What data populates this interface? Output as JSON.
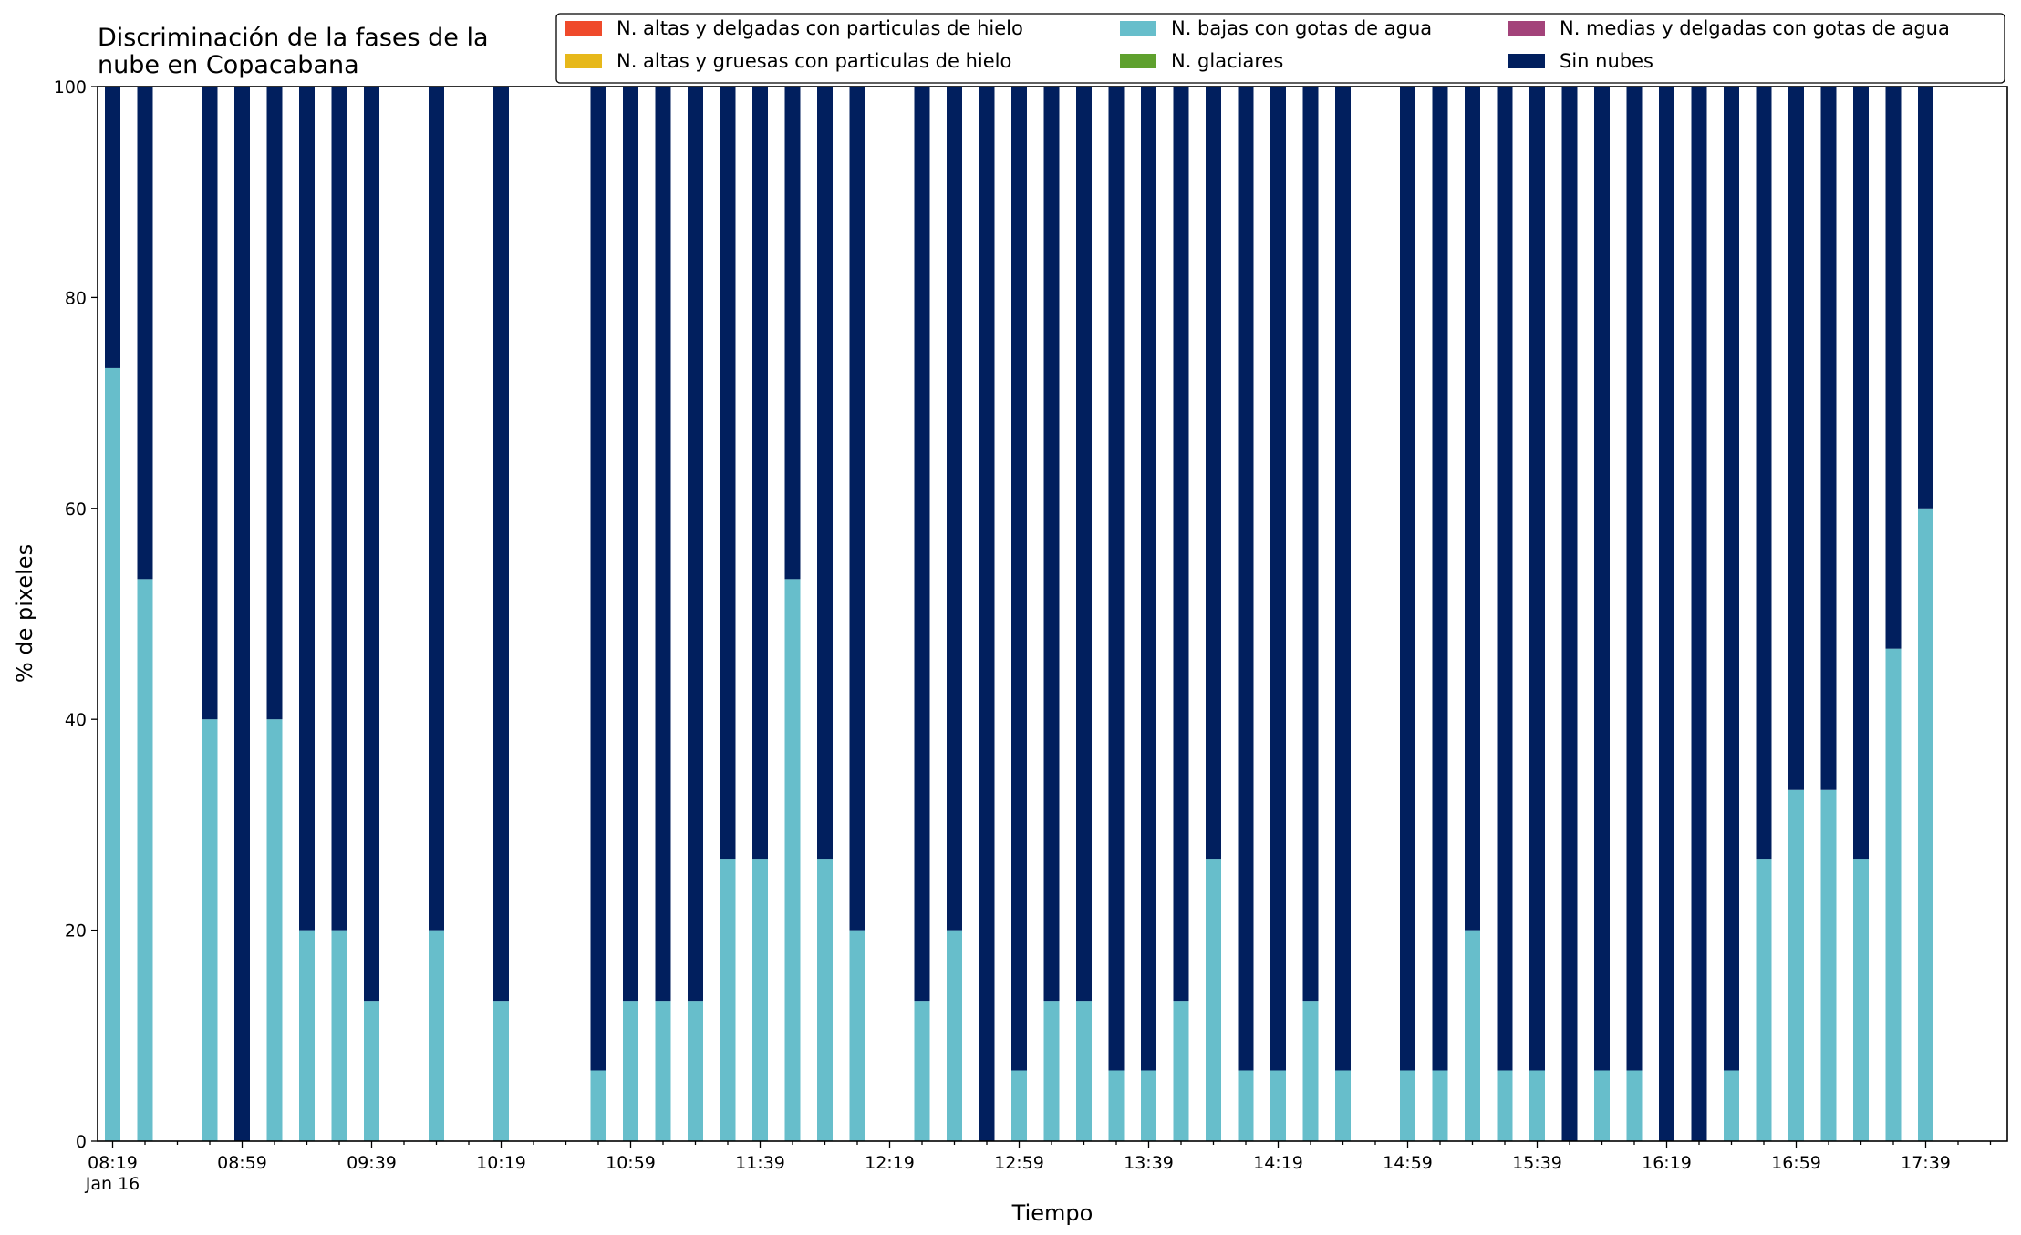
{
  "chart_data": {
    "type": "bar",
    "stacked": true,
    "title": "Discriminación de la fases de la\nnube en Copacabana",
    "xlabel": "Tiempo",
    "ylabel": "% de pixeles",
    "ylim": [
      0,
      100
    ],
    "yticks": [
      0,
      20,
      40,
      60,
      80,
      100
    ],
    "x_tick_labels": [
      "08:19\nJan 16",
      "08:59",
      "09:39",
      "10:19",
      "10:59",
      "11:39",
      "12:19",
      "12:59",
      "13:39",
      "14:19",
      "14:59",
      "15:39",
      "16:19",
      "16:59",
      "17:39"
    ],
    "grid": false,
    "legend_position": "top-right",
    "legend_columns": 3,
    "categories": [
      "08:19",
      "08:29",
      "08:39",
      "08:49",
      "08:59",
      "09:09",
      "09:19",
      "09:29",
      "09:39",
      "09:49",
      "09:59",
      "10:09",
      "10:19",
      "10:29",
      "10:39",
      "10:49",
      "10:59",
      "11:09",
      "11:19",
      "11:29",
      "11:39",
      "11:49",
      "11:59",
      "12:09",
      "12:19",
      "12:29",
      "12:39",
      "12:49",
      "12:59",
      "13:09",
      "13:19",
      "13:29",
      "13:39",
      "13:49",
      "13:59",
      "14:09",
      "14:19",
      "14:29",
      "14:39",
      "14:49",
      "14:59",
      "15:09",
      "15:19",
      "15:29",
      "15:39",
      "15:49",
      "15:59",
      "16:09",
      "16:19",
      "16:29",
      "16:39",
      "16:49",
      "16:59",
      "17:09",
      "17:19",
      "17:29",
      "17:39",
      "17:49",
      "17:59"
    ],
    "series": [
      {
        "name": "N. altas y delgadas con particulas de hielo",
        "color": "#ef4a2b",
        "values": [
          0,
          0,
          null,
          0,
          0,
          0,
          0,
          0,
          0,
          null,
          0,
          null,
          0,
          null,
          null,
          0,
          0,
          0,
          0,
          0,
          0,
          0,
          0,
          0,
          null,
          0,
          0,
          0,
          0,
          0,
          0,
          0,
          0,
          0,
          0,
          0,
          0,
          0,
          0,
          0,
          null,
          0,
          0,
          0,
          0,
          0,
          0,
          0,
          0,
          0,
          0,
          0,
          0,
          0,
          0,
          0,
          0,
          null,
          null
        ]
      },
      {
        "name": "N. altas y gruesas con particulas de hielo",
        "color": "#e7b81a",
        "values": [
          0,
          0,
          null,
          0,
          0,
          0,
          0,
          0,
          0,
          null,
          0,
          null,
          0,
          null,
          null,
          0,
          0,
          0,
          0,
          0,
          0,
          0,
          0,
          0,
          null,
          0,
          0,
          0,
          0,
          0,
          0,
          0,
          0,
          0,
          0,
          0,
          0,
          0,
          0,
          0,
          null,
          0,
          0,
          0,
          0,
          0,
          0,
          0,
          0,
          0,
          0,
          0,
          0,
          0,
          0,
          0,
          0,
          null,
          null
        ]
      },
      {
        "name": "N. bajas con gotas de agua",
        "color": "#67becb",
        "values": [
          73.3,
          53.3,
          null,
          40,
          0,
          40,
          20,
          20,
          13.3,
          null,
          20,
          null,
          13.3,
          null,
          null,
          6.7,
          13.3,
          13.3,
          13.3,
          26.7,
          26.7,
          53.3,
          26.7,
          20,
          null,
          13.3,
          20,
          0,
          6.7,
          13.3,
          13.3,
          6.7,
          6.7,
          13.3,
          26.7,
          6.7,
          6.7,
          13.3,
          6.7,
          null,
          6.7,
          6.7,
          20,
          6.7,
          6.7,
          0,
          6.7,
          6.7,
          0,
          0,
          6.7,
          26.7,
          33.3,
          33.3,
          26.7,
          46.7,
          60,
          null,
          null
        ]
      },
      {
        "name": "N. glaciares",
        "color": "#5fa12e",
        "values": [
          0,
          0,
          null,
          0,
          0,
          0,
          0,
          0,
          0,
          null,
          0,
          null,
          0,
          null,
          null,
          0,
          0,
          0,
          0,
          0,
          0,
          0,
          0,
          0,
          null,
          0,
          0,
          0,
          0,
          0,
          0,
          0,
          0,
          0,
          0,
          0,
          0,
          0,
          0,
          0,
          null,
          0,
          0,
          0,
          0,
          0,
          0,
          0,
          0,
          0,
          0,
          0,
          0,
          0,
          0,
          0,
          0,
          null,
          null
        ]
      },
      {
        "name": "N. medias y delgadas con gotas de agua",
        "color": "#a3437a",
        "values": [
          0,
          0,
          null,
          0,
          0,
          0,
          0,
          0,
          0,
          null,
          0,
          null,
          0,
          null,
          null,
          0,
          0,
          0,
          0,
          0,
          0,
          0,
          0,
          0,
          null,
          0,
          0,
          0,
          0,
          0,
          0,
          0,
          0,
          0,
          0,
          0,
          0,
          0,
          0,
          0,
          null,
          0,
          0,
          0,
          0,
          0,
          0,
          0,
          0,
          0,
          0,
          0,
          0,
          0,
          0,
          0,
          0,
          null,
          null
        ]
      },
      {
        "name": "Sin nubes",
        "color": "#011f5e",
        "values": [
          26.7,
          46.7,
          null,
          60,
          100,
          60,
          80,
          80,
          86.7,
          null,
          80,
          null,
          86.7,
          null,
          null,
          93.3,
          86.7,
          86.7,
          86.7,
          73.3,
          73.3,
          46.7,
          73.3,
          80,
          null,
          86.7,
          80,
          100,
          93.3,
          86.7,
          86.7,
          93.3,
          93.3,
          86.7,
          73.3,
          93.3,
          93.3,
          86.7,
          93.3,
          null,
          93.3,
          93.3,
          80,
          93.3,
          93.3,
          100,
          93.3,
          93.3,
          100,
          100,
          93.3,
          73.3,
          66.7,
          66.7,
          73.3,
          53.3,
          40,
          null,
          null
        ]
      }
    ]
  }
}
